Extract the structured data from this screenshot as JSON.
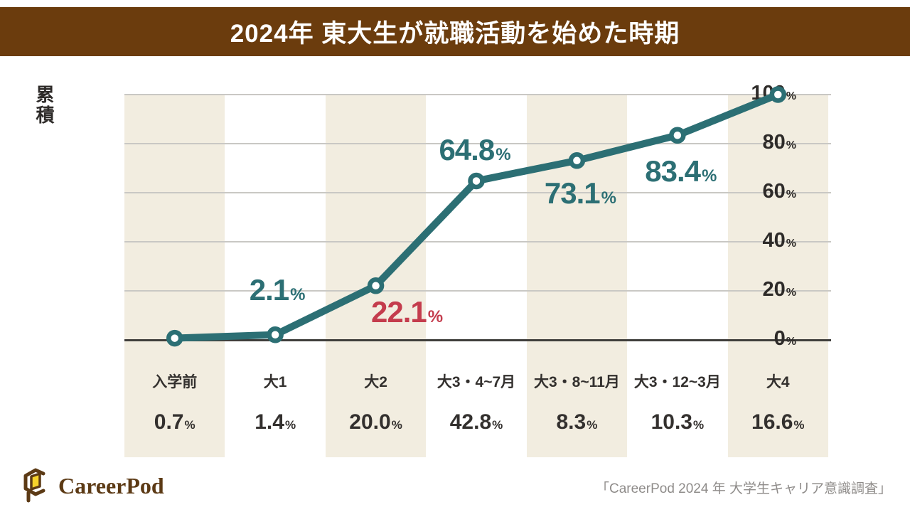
{
  "header": {
    "title": "2024年 東大生が就職活動を始めた時期"
  },
  "y_axis": {
    "title": "累積"
  },
  "chart_data": {
    "type": "line",
    "title": "2024年 東大生が就職活動を始めた時期",
    "ylabel": "累積",
    "xlabel": "",
    "unit": "%",
    "ylim": [
      0,
      100
    ],
    "y_ticks": [
      0,
      20,
      40,
      60,
      80,
      100
    ],
    "grid": true,
    "categories": [
      "入学前",
      "大1",
      "大2",
      "大3・4~7月",
      "大3・8~11月",
      "大3・12~3月",
      "大4"
    ],
    "period_value_labels": [
      "0.7",
      "1.4",
      "20.0",
      "42.8",
      "8.3",
      "10.3",
      "16.6"
    ],
    "period_values": [
      0.7,
      1.4,
      20.0,
      42.8,
      8.3,
      10.3,
      16.6
    ],
    "cumulative_values": [
      0.7,
      2.1,
      22.1,
      64.8,
      73.1,
      83.4,
      100
    ],
    "point_labels": [
      null,
      "2.1",
      "22.1",
      "64.8",
      "73.1",
      "83.4",
      null
    ],
    "highlight_index": 2,
    "line_color": "#2C6F74",
    "highlight_color": "#C43C4D",
    "stripe_color": "#F2EDE0",
    "striped_columns": [
      0,
      2,
      4,
      6
    ],
    "legend_position": "none"
  },
  "footer": {
    "logo_text": "CareerPod",
    "source": "「CareerPod 2024 年 大学生キャリア意識調査」"
  }
}
